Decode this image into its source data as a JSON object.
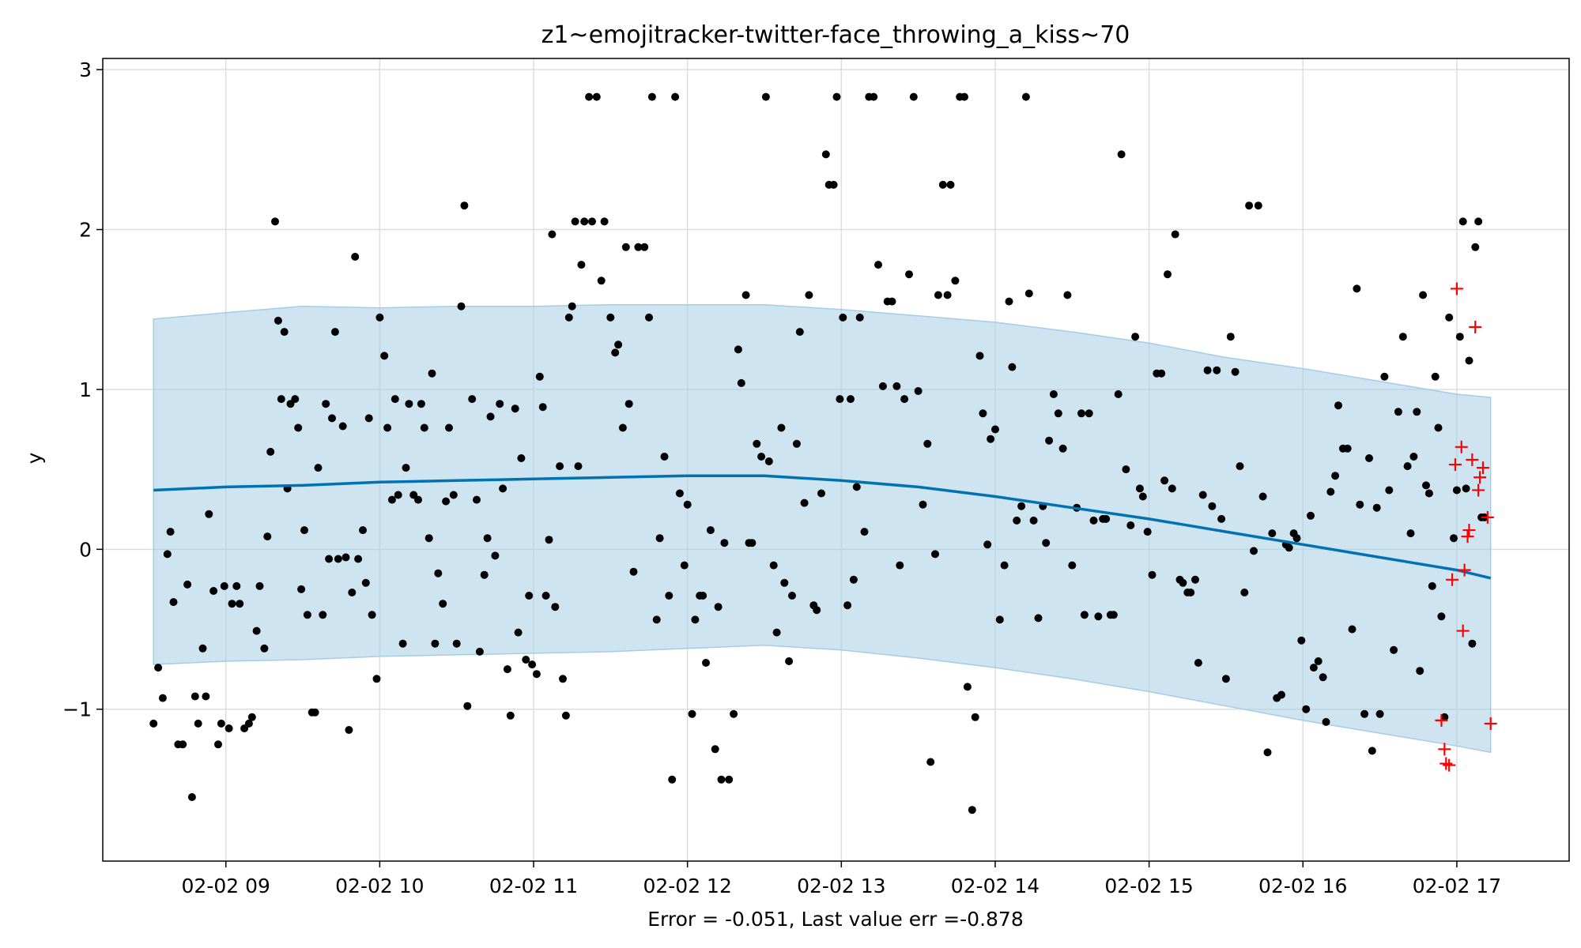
{
  "colors": {
    "band": "#a6cde3",
    "trend": "#0072b2",
    "observed": "#000000",
    "future": "#ff0000",
    "grid": "#dddddd"
  },
  "chart_data": {
    "type": "scatter",
    "title": "z1~emojitracker-twitter-face_throwing_a_kiss~70",
    "xlabel": "Error = -0.051, Last value err =-0.878",
    "ylabel": "y",
    "x_unit": "hours",
    "xlim": [
      8.2,
      17.73
    ],
    "ylim": [
      -1.95,
      3.07
    ],
    "x_ticks": [
      {
        "value": 9,
        "label": "02-02 09"
      },
      {
        "value": 10,
        "label": "02-02 10"
      },
      {
        "value": 11,
        "label": "02-02 11"
      },
      {
        "value": 12,
        "label": "02-02 12"
      },
      {
        "value": 13,
        "label": "02-02 13"
      },
      {
        "value": 14,
        "label": "02-02 14"
      },
      {
        "value": 15,
        "label": "02-02 15"
      },
      {
        "value": 16,
        "label": "02-02 16"
      },
      {
        "value": 17,
        "label": "02-02 17"
      }
    ],
    "y_ticks": [
      {
        "value": -1,
        "label": "−1"
      },
      {
        "value": 0,
        "label": "0"
      },
      {
        "value": 1,
        "label": "1"
      },
      {
        "value": 2,
        "label": "2"
      },
      {
        "value": 3,
        "label": "3"
      }
    ],
    "grid": true,
    "forecast": {
      "x": [
        8.53,
        9.0,
        9.5,
        10.0,
        10.5,
        11.0,
        11.5,
        12.0,
        12.5,
        13.0,
        13.5,
        14.0,
        14.5,
        15.0,
        15.5,
        16.0,
        16.5,
        17.0,
        17.22
      ],
      "yhat": [
        0.37,
        0.39,
        0.4,
        0.42,
        0.43,
        0.44,
        0.45,
        0.46,
        0.46,
        0.43,
        0.39,
        0.33,
        0.26,
        0.19,
        0.11,
        0.03,
        -0.05,
        -0.13,
        -0.18
      ],
      "upper": [
        1.44,
        1.48,
        1.52,
        1.51,
        1.52,
        1.52,
        1.53,
        1.53,
        1.53,
        1.5,
        1.46,
        1.42,
        1.36,
        1.29,
        1.2,
        1.13,
        1.05,
        0.97,
        0.95
      ],
      "lower": [
        -0.72,
        -0.7,
        -0.69,
        -0.67,
        -0.66,
        -0.65,
        -0.64,
        -0.62,
        -0.6,
        -0.63,
        -0.68,
        -0.74,
        -0.81,
        -0.89,
        -0.98,
        -1.07,
        -1.15,
        -1.23,
        -1.27
      ]
    },
    "observed": [
      [
        8.53,
        -1.09
      ],
      [
        8.56,
        -0.74
      ],
      [
        8.59,
        -0.93
      ],
      [
        8.62,
        -0.03
      ],
      [
        8.64,
        0.11
      ],
      [
        8.66,
        -0.33
      ],
      [
        8.69,
        -1.22
      ],
      [
        8.72,
        -1.22
      ],
      [
        8.75,
        -0.22
      ],
      [
        8.78,
        -1.55
      ],
      [
        8.8,
        -0.92
      ],
      [
        8.82,
        -1.09
      ],
      [
        8.85,
        -0.62
      ],
      [
        8.87,
        -0.92
      ],
      [
        8.89,
        0.22
      ],
      [
        8.92,
        -0.26
      ],
      [
        8.95,
        -1.22
      ],
      [
        8.97,
        -1.09
      ],
      [
        8.99,
        -0.23
      ],
      [
        9.02,
        -1.12
      ],
      [
        9.04,
        -0.34
      ],
      [
        9.07,
        -0.23
      ],
      [
        9.09,
        -0.34
      ],
      [
        9.12,
        -1.12
      ],
      [
        9.15,
        -1.09
      ],
      [
        9.17,
        -1.05
      ],
      [
        9.2,
        -0.51
      ],
      [
        9.22,
        -0.23
      ],
      [
        9.25,
        -0.62
      ],
      [
        9.27,
        0.08
      ],
      [
        9.29,
        0.61
      ],
      [
        9.32,
        2.05
      ],
      [
        9.34,
        1.43
      ],
      [
        9.36,
        0.94
      ],
      [
        9.38,
        1.36
      ],
      [
        9.4,
        0.38
      ],
      [
        9.42,
        0.91
      ],
      [
        9.45,
        0.94
      ],
      [
        9.47,
        0.76
      ],
      [
        9.49,
        -0.25
      ],
      [
        9.51,
        0.12
      ],
      [
        9.53,
        -0.41
      ],
      [
        9.56,
        -1.02
      ],
      [
        9.58,
        -1.02
      ],
      [
        9.6,
        0.51
      ],
      [
        9.63,
        -0.41
      ],
      [
        9.65,
        0.91
      ],
      [
        9.67,
        -0.06
      ],
      [
        9.69,
        0.82
      ],
      [
        9.71,
        1.36
      ],
      [
        9.73,
        -0.06
      ],
      [
        9.76,
        0.77
      ],
      [
        9.78,
        -0.05
      ],
      [
        9.8,
        -1.13
      ],
      [
        9.82,
        -0.27
      ],
      [
        9.84,
        1.83
      ],
      [
        9.86,
        -0.06
      ],
      [
        9.89,
        0.12
      ],
      [
        9.91,
        -0.21
      ],
      [
        9.93,
        0.82
      ],
      [
        9.95,
        -0.41
      ],
      [
        9.98,
        -0.81
      ],
      [
        10.0,
        1.45
      ],
      [
        10.03,
        1.21
      ],
      [
        10.05,
        0.76
      ],
      [
        10.08,
        0.31
      ],
      [
        10.1,
        0.94
      ],
      [
        10.12,
        0.34
      ],
      [
        10.15,
        -0.59
      ],
      [
        10.17,
        0.51
      ],
      [
        10.19,
        0.91
      ],
      [
        10.22,
        0.34
      ],
      [
        10.25,
        0.31
      ],
      [
        10.27,
        0.91
      ],
      [
        10.29,
        0.76
      ],
      [
        10.32,
        0.07
      ],
      [
        10.34,
        1.1
      ],
      [
        10.36,
        -0.59
      ],
      [
        10.38,
        -0.15
      ],
      [
        10.41,
        -0.34
      ],
      [
        10.43,
        0.3
      ],
      [
        10.45,
        0.76
      ],
      [
        10.48,
        0.34
      ],
      [
        10.5,
        -0.59
      ],
      [
        10.53,
        1.52
      ],
      [
        10.55,
        2.15
      ],
      [
        10.57,
        -0.98
      ],
      [
        10.6,
        0.94
      ],
      [
        10.63,
        0.31
      ],
      [
        10.65,
        -0.64
      ],
      [
        10.68,
        -0.16
      ],
      [
        10.7,
        0.07
      ],
      [
        10.72,
        0.83
      ],
      [
        10.75,
        -0.04
      ],
      [
        10.78,
        0.91
      ],
      [
        10.8,
        0.38
      ],
      [
        10.83,
        -0.75
      ],
      [
        10.85,
        -1.04
      ],
      [
        10.88,
        0.88
      ],
      [
        10.9,
        -0.52
      ],
      [
        10.92,
        0.57
      ],
      [
        10.95,
        -0.69
      ],
      [
        10.97,
        -0.29
      ],
      [
        10.99,
        -0.72
      ],
      [
        11.02,
        -0.78
      ],
      [
        11.04,
        1.08
      ],
      [
        11.06,
        0.89
      ],
      [
        11.08,
        -0.29
      ],
      [
        11.1,
        0.06
      ],
      [
        11.12,
        1.97
      ],
      [
        11.14,
        -0.36
      ],
      [
        11.17,
        0.52
      ],
      [
        11.19,
        -0.81
      ],
      [
        11.21,
        -1.04
      ],
      [
        11.23,
        1.45
      ],
      [
        11.25,
        1.52
      ],
      [
        11.27,
        2.05
      ],
      [
        11.29,
        0.52
      ],
      [
        11.31,
        1.78
      ],
      [
        11.33,
        2.05
      ],
      [
        11.36,
        2.83
      ],
      [
        11.38,
        2.05
      ],
      [
        11.41,
        2.83
      ],
      [
        11.44,
        1.68
      ],
      [
        11.46,
        2.05
      ],
      [
        11.5,
        1.45
      ],
      [
        11.53,
        1.23
      ],
      [
        11.55,
        1.28
      ],
      [
        11.58,
        0.76
      ],
      [
        11.6,
        1.89
      ],
      [
        11.62,
        0.91
      ],
      [
        11.65,
        -0.14
      ],
      [
        11.68,
        1.89
      ],
      [
        11.72,
        1.89
      ],
      [
        11.75,
        1.45
      ],
      [
        11.77,
        2.83
      ],
      [
        11.8,
        -0.44
      ],
      [
        11.82,
        0.07
      ],
      [
        11.85,
        0.58
      ],
      [
        11.88,
        -0.29
      ],
      [
        11.9,
        -1.44
      ],
      [
        11.92,
        2.83
      ],
      [
        11.95,
        0.35
      ],
      [
        11.98,
        -0.1
      ],
      [
        12.0,
        0.28
      ],
      [
        12.03,
        -1.03
      ],
      [
        12.05,
        -0.44
      ],
      [
        12.08,
        -0.29
      ],
      [
        12.1,
        -0.29
      ],
      [
        12.12,
        -0.71
      ],
      [
        12.15,
        0.12
      ],
      [
        12.18,
        -1.25
      ],
      [
        12.2,
        -0.36
      ],
      [
        12.22,
        -1.44
      ],
      [
        12.24,
        0.04
      ],
      [
        12.27,
        -1.44
      ],
      [
        12.3,
        -1.03
      ],
      [
        12.33,
        1.25
      ],
      [
        12.35,
        1.04
      ],
      [
        12.38,
        1.59
      ],
      [
        12.4,
        0.04
      ],
      [
        12.42,
        0.04
      ],
      [
        12.45,
        0.66
      ],
      [
        12.48,
        0.58
      ],
      [
        12.51,
        2.83
      ],
      [
        12.53,
        0.55
      ],
      [
        12.56,
        -0.1
      ],
      [
        12.58,
        -0.52
      ],
      [
        12.61,
        0.76
      ],
      [
        12.63,
        -0.21
      ],
      [
        12.66,
        -0.7
      ],
      [
        12.68,
        -0.29
      ],
      [
        12.71,
        0.66
      ],
      [
        12.73,
        1.36
      ],
      [
        12.76,
        0.29
      ],
      [
        12.79,
        1.59
      ],
      [
        12.82,
        -0.35
      ],
      [
        12.84,
        -0.38
      ],
      [
        12.87,
        0.35
      ],
      [
        12.9,
        2.47
      ],
      [
        12.92,
        2.28
      ],
      [
        12.95,
        2.28
      ],
      [
        12.97,
        2.83
      ],
      [
        12.99,
        0.94
      ],
      [
        13.01,
        1.45
      ],
      [
        13.04,
        -0.35
      ],
      [
        13.06,
        0.94
      ],
      [
        13.08,
        -0.19
      ],
      [
        13.1,
        0.39
      ],
      [
        13.12,
        1.45
      ],
      [
        13.15,
        0.11
      ],
      [
        13.18,
        2.83
      ],
      [
        13.21,
        2.83
      ],
      [
        13.24,
        1.78
      ],
      [
        13.27,
        1.02
      ],
      [
        13.3,
        1.55
      ],
      [
        13.33,
        1.55
      ],
      [
        13.36,
        1.02
      ],
      [
        13.38,
        -0.1
      ],
      [
        13.41,
        0.94
      ],
      [
        13.44,
        1.72
      ],
      [
        13.47,
        2.83
      ],
      [
        13.5,
        0.99
      ],
      [
        13.53,
        0.28
      ],
      [
        13.56,
        0.66
      ],
      [
        13.58,
        -1.33
      ],
      [
        13.61,
        -0.03
      ],
      [
        13.63,
        1.59
      ],
      [
        13.66,
        2.28
      ],
      [
        13.69,
        1.59
      ],
      [
        13.71,
        2.28
      ],
      [
        13.74,
        1.68
      ],
      [
        13.77,
        2.83
      ],
      [
        13.8,
        2.83
      ],
      [
        13.82,
        -0.86
      ],
      [
        13.85,
        -1.63
      ],
      [
        13.87,
        -1.05
      ],
      [
        13.9,
        1.21
      ],
      [
        13.92,
        0.85
      ],
      [
        13.95,
        0.03
      ],
      [
        13.97,
        0.69
      ],
      [
        14.0,
        0.75
      ],
      [
        14.03,
        -0.44
      ],
      [
        14.06,
        -0.1
      ],
      [
        14.09,
        1.55
      ],
      [
        14.11,
        1.14
      ],
      [
        14.14,
        0.18
      ],
      [
        14.17,
        0.27
      ],
      [
        14.2,
        2.83
      ],
      [
        14.22,
        1.6
      ],
      [
        14.25,
        0.18
      ],
      [
        14.28,
        -0.43
      ],
      [
        14.31,
        0.27
      ],
      [
        14.33,
        0.04
      ],
      [
        14.35,
        0.68
      ],
      [
        14.38,
        0.97
      ],
      [
        14.41,
        0.85
      ],
      [
        14.44,
        0.63
      ],
      [
        14.47,
        1.59
      ],
      [
        14.5,
        -0.1
      ],
      [
        14.53,
        0.26
      ],
      [
        14.56,
        0.85
      ],
      [
        14.58,
        -0.41
      ],
      [
        14.61,
        0.85
      ],
      [
        14.64,
        0.18
      ],
      [
        14.67,
        -0.42
      ],
      [
        14.7,
        0.19
      ],
      [
        14.72,
        0.19
      ],
      [
        14.75,
        -0.41
      ],
      [
        14.77,
        -0.41
      ],
      [
        14.8,
        0.97
      ],
      [
        14.82,
        2.47
      ],
      [
        14.85,
        0.5
      ],
      [
        14.88,
        0.15
      ],
      [
        14.91,
        1.33
      ],
      [
        14.94,
        0.38
      ],
      [
        14.96,
        0.33
      ],
      [
        14.99,
        0.11
      ],
      [
        15.02,
        -0.16
      ],
      [
        15.05,
        1.1
      ],
      [
        15.08,
        1.1
      ],
      [
        15.1,
        0.43
      ],
      [
        15.12,
        1.72
      ],
      [
        15.15,
        0.38
      ],
      [
        15.17,
        1.97
      ],
      [
        15.2,
        -0.19
      ],
      [
        15.22,
        -0.21
      ],
      [
        15.25,
        -0.27
      ],
      [
        15.27,
        -0.27
      ],
      [
        15.3,
        -0.19
      ],
      [
        15.32,
        -0.71
      ],
      [
        15.35,
        0.34
      ],
      [
        15.38,
        1.12
      ],
      [
        15.41,
        0.27
      ],
      [
        15.44,
        1.12
      ],
      [
        15.47,
        0.19
      ],
      [
        15.5,
        -0.81
      ],
      [
        15.53,
        1.33
      ],
      [
        15.56,
        1.11
      ],
      [
        15.59,
        0.52
      ],
      [
        15.62,
        -0.27
      ],
      [
        15.65,
        2.15
      ],
      [
        15.68,
        -0.01
      ],
      [
        15.71,
        2.15
      ],
      [
        15.74,
        0.33
      ],
      [
        15.77,
        -1.27
      ],
      [
        15.8,
        0.1
      ],
      [
        15.83,
        -0.93
      ],
      [
        15.86,
        -0.91
      ],
      [
        15.89,
        0.03
      ],
      [
        15.91,
        0.01
      ],
      [
        15.94,
        0.1
      ],
      [
        15.96,
        0.07
      ],
      [
        15.99,
        -0.57
      ],
      [
        16.02,
        -1.0
      ],
      [
        16.05,
        0.21
      ],
      [
        16.07,
        -0.74
      ],
      [
        16.1,
        -0.7
      ],
      [
        16.13,
        -0.8
      ],
      [
        16.15,
        -1.08
      ],
      [
        16.18,
        0.36
      ],
      [
        16.21,
        0.46
      ],
      [
        16.23,
        0.9
      ],
      [
        16.26,
        0.63
      ],
      [
        16.29,
        0.63
      ],
      [
        16.32,
        -0.5
      ],
      [
        16.35,
        1.63
      ],
      [
        16.37,
        0.28
      ],
      [
        16.4,
        -1.03
      ],
      [
        16.43,
        0.57
      ],
      [
        16.45,
        -1.26
      ],
      [
        16.48,
        0.26
      ],
      [
        16.5,
        -1.03
      ],
      [
        16.53,
        1.08
      ],
      [
        16.56,
        0.37
      ],
      [
        16.59,
        -0.63
      ],
      [
        16.62,
        0.86
      ],
      [
        16.65,
        1.33
      ],
      [
        16.68,
        0.52
      ],
      [
        16.7,
        0.1
      ],
      [
        16.72,
        0.58
      ],
      [
        16.74,
        0.86
      ],
      [
        16.76,
        -0.76
      ],
      [
        16.78,
        1.59
      ],
      [
        16.8,
        0.4
      ],
      [
        16.82,
        0.35
      ],
      [
        16.84,
        -0.23
      ],
      [
        16.86,
        1.08
      ],
      [
        16.88,
        0.76
      ],
      [
        16.9,
        -0.42
      ],
      [
        16.92,
        -1.05
      ],
      [
        16.95,
        1.45
      ],
      [
        16.98,
        0.07
      ],
      [
        17.0,
        0.37
      ],
      [
        17.02,
        1.33
      ],
      [
        17.04,
        2.05
      ],
      [
        17.06,
        0.38
      ],
      [
        17.08,
        1.18
      ],
      [
        17.1,
        -0.59
      ],
      [
        17.12,
        1.89
      ],
      [
        17.14,
        2.05
      ],
      [
        17.16,
        0.2
      ],
      [
        17.18,
        0.2
      ]
    ],
    "future": [
      [
        16.9,
        -1.07
      ],
      [
        16.92,
        -1.25
      ],
      [
        16.93,
        -1.34
      ],
      [
        16.95,
        -1.35
      ],
      [
        16.97,
        -0.19
      ],
      [
        16.99,
        0.53
      ],
      [
        17.0,
        1.63
      ],
      [
        17.03,
        0.64
      ],
      [
        17.05,
        -0.13
      ],
      [
        17.07,
        0.08
      ],
      [
        17.08,
        0.12
      ],
      [
        17.1,
        0.56
      ],
      [
        17.12,
        1.39
      ],
      [
        17.14,
        0.37
      ],
      [
        17.15,
        0.45
      ],
      [
        17.17,
        0.51
      ],
      [
        17.2,
        0.2
      ],
      [
        17.22,
        -1.09
      ],
      [
        17.04,
        -0.51
      ]
    ]
  }
}
